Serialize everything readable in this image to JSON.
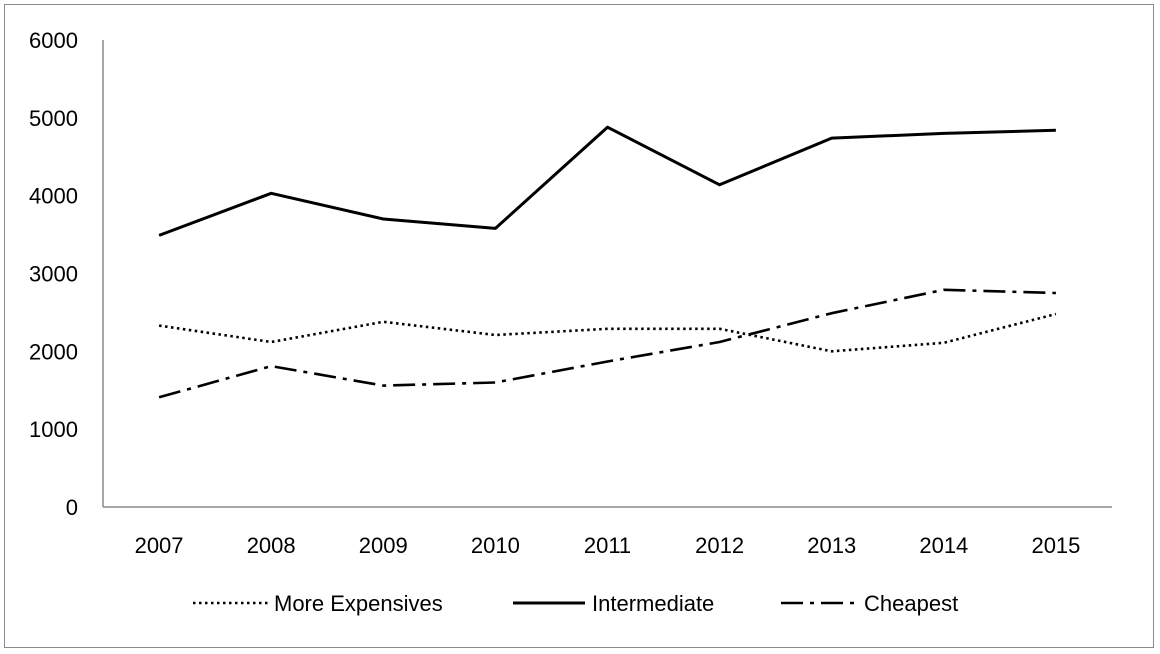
{
  "chart_data": {
    "type": "line",
    "title": "",
    "xlabel": "",
    "ylabel": "",
    "x": [
      "2007",
      "2008",
      "2009",
      "2010",
      "2011",
      "2012",
      "2013",
      "2014",
      "2015"
    ],
    "ylim": [
      0,
      6000
    ],
    "yticks": [
      0,
      1000,
      2000,
      3000,
      4000,
      5000,
      6000
    ],
    "grid": false,
    "legend_position": "bottom",
    "series": [
      {
        "name": "More Expensives",
        "style": "dotted",
        "color": "#000000",
        "values": [
          2330,
          2120,
          2380,
          2210,
          2290,
          2290,
          2000,
          2110,
          2480
        ]
      },
      {
        "name": "Intermediate",
        "style": "solid",
        "color": "#000000",
        "values": [
          3490,
          4030,
          3700,
          3580,
          4880,
          4140,
          4740,
          4800,
          4840
        ]
      },
      {
        "name": "Cheapest",
        "style": "dash-dot",
        "color": "#000000",
        "values": [
          1410,
          1810,
          1560,
          1600,
          1870,
          2120,
          2490,
          2790,
          2750
        ]
      }
    ]
  }
}
